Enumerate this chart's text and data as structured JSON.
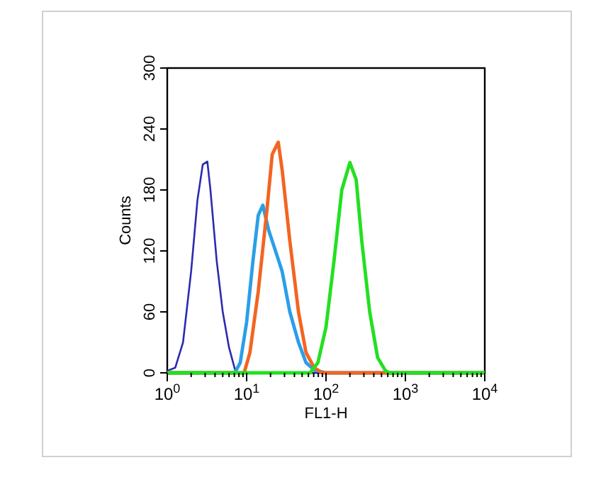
{
  "chart_data": {
    "type": "line",
    "xlabel": "FL1-H",
    "ylabel": "Counts",
    "log": "x",
    "xlim": [
      1,
      10000
    ],
    "ylim": [
      0,
      300
    ],
    "xticks": [
      {
        "value": 1,
        "label": "10$^{0}$"
      },
      {
        "value": 2,
        "label": null
      },
      {
        "value": 3,
        "label": null
      },
      {
        "value": 4,
        "label": null
      },
      {
        "value": 5,
        "label": null
      },
      {
        "value": 6,
        "label": null
      },
      {
        "value": 7,
        "label": null
      },
      {
        "value": 8,
        "label": null
      },
      {
        "value": 9,
        "label": null
      },
      {
        "value": 10,
        "label": "10$^{1}$"
      },
      {
        "value": 20,
        "label": null
      },
      {
        "value": 30,
        "label": null
      },
      {
        "value": 40,
        "label": null
      },
      {
        "value": 50,
        "label": null
      },
      {
        "value": 60,
        "label": null
      },
      {
        "value": 70,
        "label": null
      },
      {
        "value": 80,
        "label": null
      },
      {
        "value": 90,
        "label": null
      },
      {
        "value": 100,
        "label": "10$^{2}$"
      },
      {
        "value": 200,
        "label": null
      },
      {
        "value": 300,
        "label": null
      },
      {
        "value": 400,
        "label": null
      },
      {
        "value": 500,
        "label": null
      },
      {
        "value": 600,
        "label": null
      },
      {
        "value": 700,
        "label": null
      },
      {
        "value": 800,
        "label": null
      },
      {
        "value": 900,
        "label": null
      },
      {
        "value": 1000,
        "label": "10$^{3}$"
      },
      {
        "value": 2000,
        "label": null
      },
      {
        "value": 3000,
        "label": null
      },
      {
        "value": 4000,
        "label": null
      },
      {
        "value": 5000,
        "label": null
      },
      {
        "value": 6000,
        "label": null
      },
      {
        "value": 7000,
        "label": null
      },
      {
        "value": 8000,
        "label": null
      },
      {
        "value": 9000,
        "label": null
      },
      {
        "value": 10000,
        "label": "10$^{4}$"
      }
    ],
    "yticks": [
      0,
      60,
      120,
      180,
      240,
      300
    ],
    "grid": false,
    "line_style": "solid",
    "series": [
      {
        "color": "#2b2bb0",
        "x": [
          1,
          1.26,
          1.58,
          2.0,
          2.4,
          2.8,
          3.2,
          3.5,
          4.2,
          5.0,
          6.0,
          7.2,
          7.9,
          10000
        ],
        "values": [
          2,
          5,
          30,
          100,
          170,
          205,
          208,
          180,
          110,
          60,
          25,
          2,
          0,
          0
        ]
      },
      {
        "color": "#2a9fe8",
        "x": [
          1,
          7.1,
          8.3,
          10,
          12,
          14,
          16,
          19,
          22,
          28,
          35,
          45,
          56,
          71,
          100,
          10000
        ],
        "values": [
          0,
          0,
          10,
          50,
          110,
          155,
          165,
          140,
          125,
          100,
          60,
          30,
          10,
          3,
          0,
          0
        ]
      },
      {
        "color": "#f26522",
        "x": [
          1,
          9.3,
          11,
          14,
          18,
          21,
          25,
          28,
          35,
          45,
          56,
          71,
          89,
          10000
        ],
        "values": [
          0,
          0,
          20,
          80,
          160,
          215,
          227,
          200,
          130,
          60,
          20,
          5,
          0,
          0
        ]
      },
      {
        "color": "#22e022",
        "x": [
          1,
          63,
          79,
          100,
          126,
          158,
          200,
          240,
          282,
          355,
          447,
          562,
          631,
          10000
        ],
        "values": [
          0,
          0,
          10,
          45,
          110,
          180,
          207,
          190,
          130,
          60,
          15,
          2,
          0,
          0
        ]
      }
    ]
  }
}
